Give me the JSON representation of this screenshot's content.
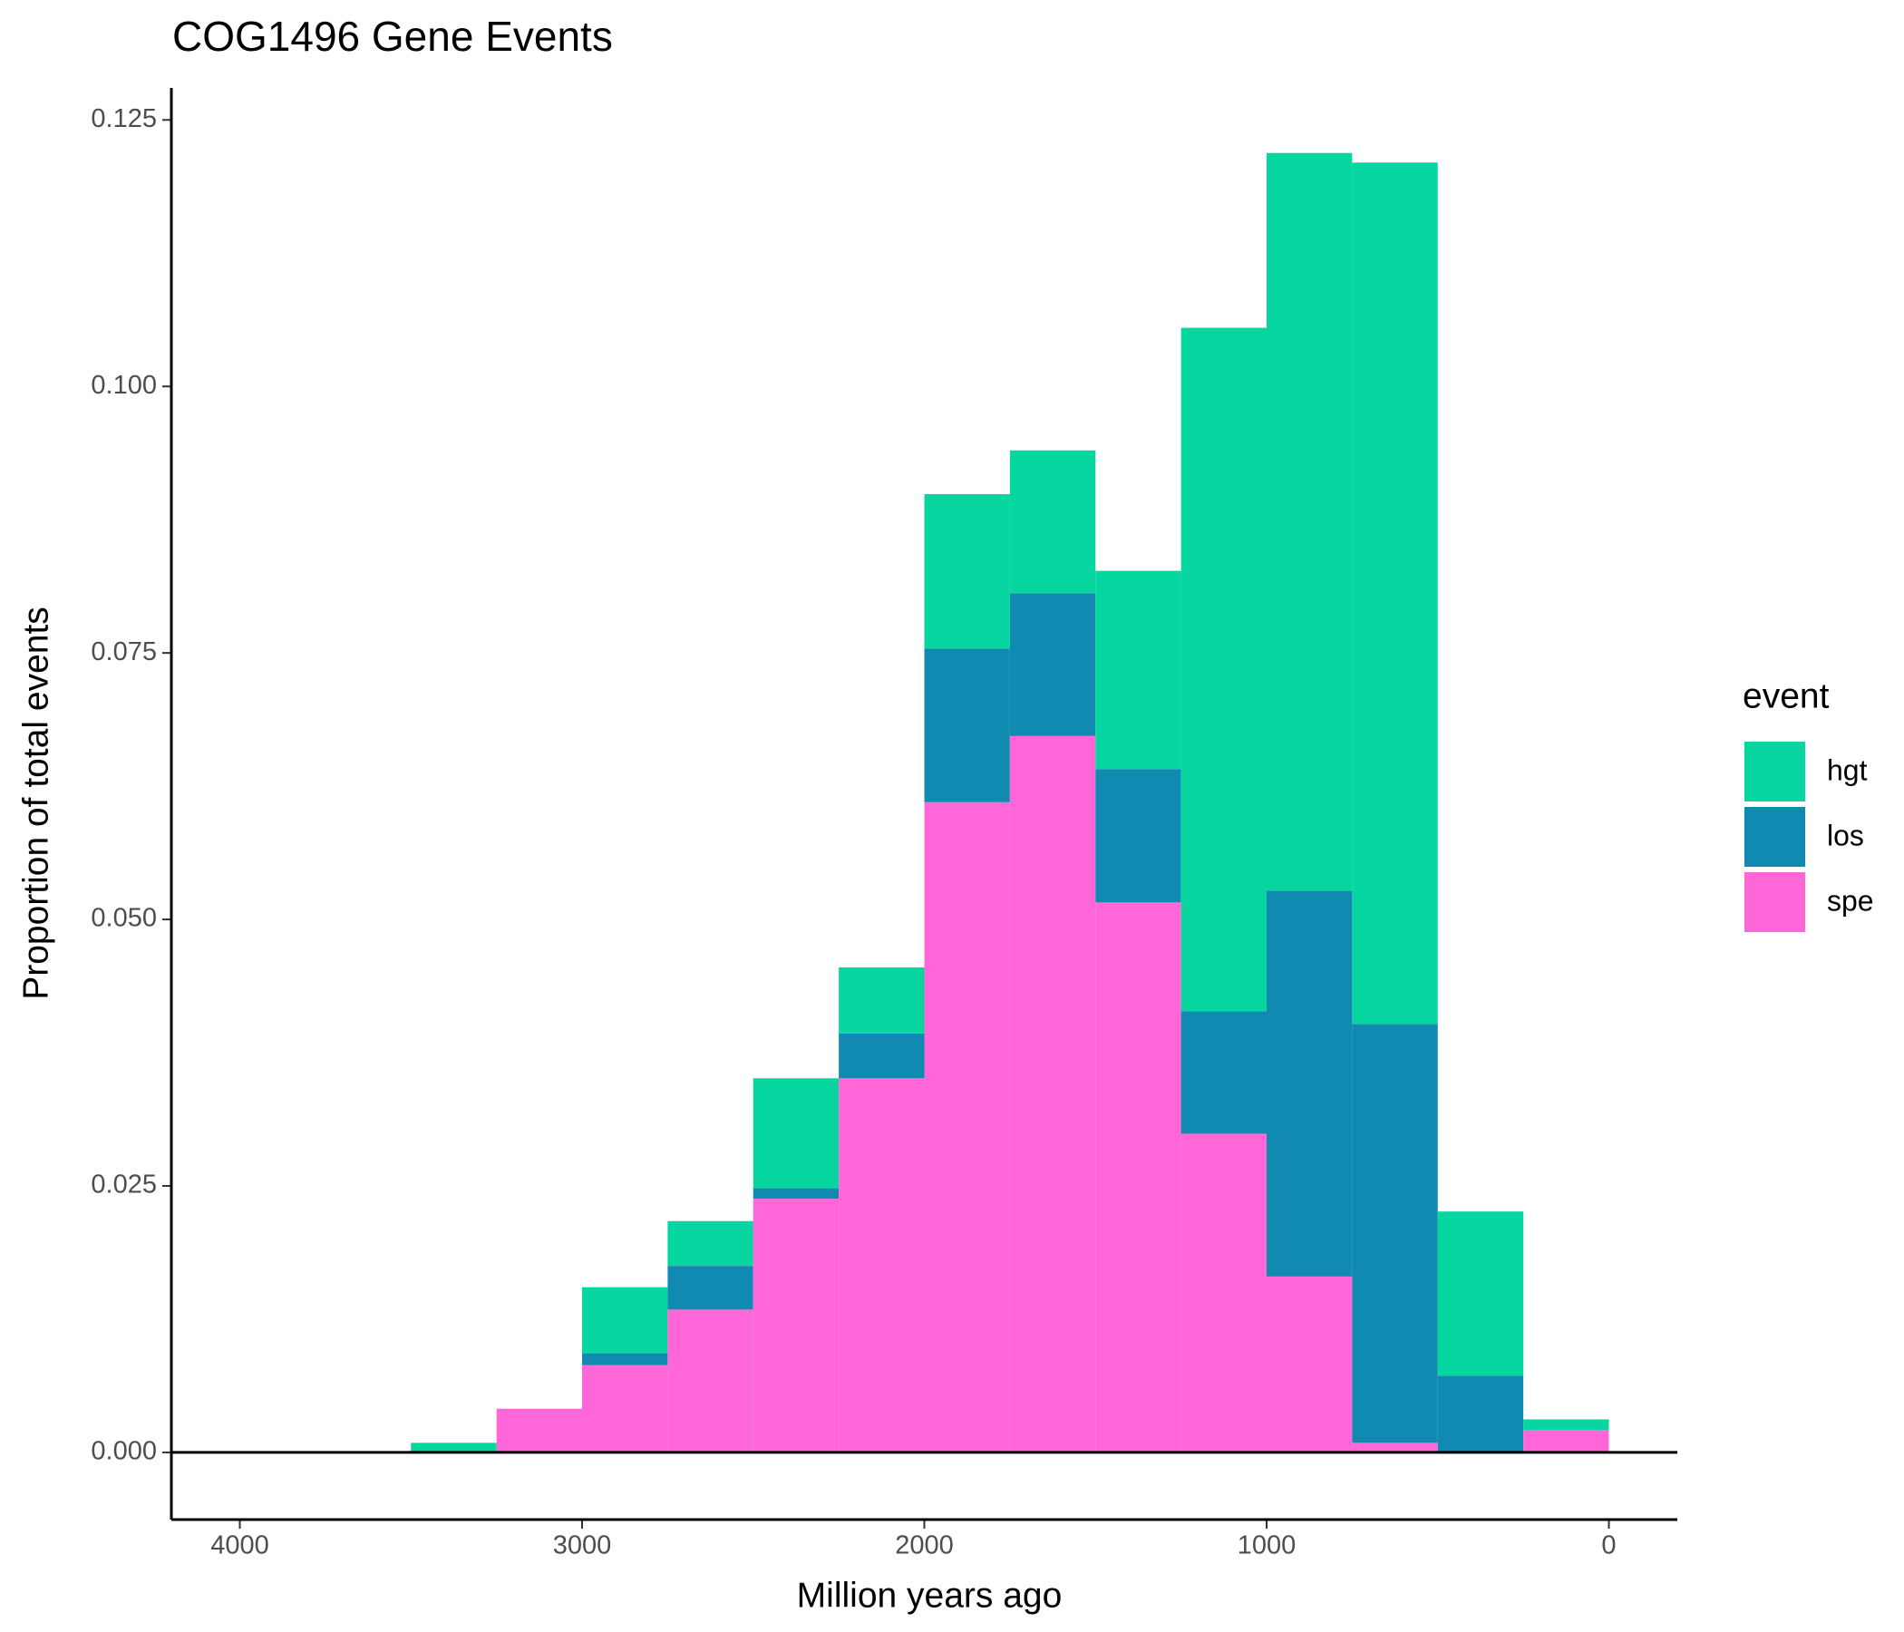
{
  "chart_data": {
    "type": "histogram",
    "title": "COG1496 Gene Events",
    "x_label": "Million years ago",
    "y_label": "Proportion of total events",
    "stacked": true,
    "bins": [
      3500,
      3250,
      3000,
      2750,
      2500,
      2250,
      2000,
      1750,
      1500,
      1250,
      1000,
      750,
      500,
      250,
      0
    ],
    "series": [
      {
        "name": "spe",
        "color": "#ff66d8",
        "values": [
          0,
          0.0041,
          0.0082,
          0.0134,
          0.0238,
          0.0351,
          0.061,
          0.0672,
          0.0516,
          0.0299,
          0.0165,
          0.0009,
          0,
          0.0021
        ]
      },
      {
        "name": "los",
        "color": "#118ab2",
        "values": [
          0,
          0,
          0.0011,
          0.0041,
          0.001,
          0.0042,
          0.0144,
          0.0134,
          0.0125,
          0.0115,
          0.0362,
          0.0393,
          0.0072,
          0
        ]
      },
      {
        "name": "hgt",
        "color": "#08d6a0",
        "values": [
          0.0009,
          0,
          0.0062,
          0.0042,
          0.0103,
          0.0062,
          0.0145,
          0.0134,
          0.0186,
          0.0641,
          0.0692,
          0.0808,
          0.0154,
          0.001
        ]
      }
    ],
    "legend_title": "event",
    "legend_order": [
      "hgt",
      "los",
      "spe"
    ],
    "xlim": [
      4200,
      -200
    ],
    "xticks": [
      4000,
      3000,
      2000,
      1000,
      0
    ],
    "ylim": [
      -0.0063,
      0.128
    ],
    "yticks": [
      {
        "value": 0,
        "label": "0.000"
      },
      0.025,
      {
        "value": 0.05,
        "label": "0.050"
      },
      0.075,
      {
        "value": 0.1,
        "label": "0.100"
      },
      0.125
    ],
    "legend_position": "right"
  }
}
